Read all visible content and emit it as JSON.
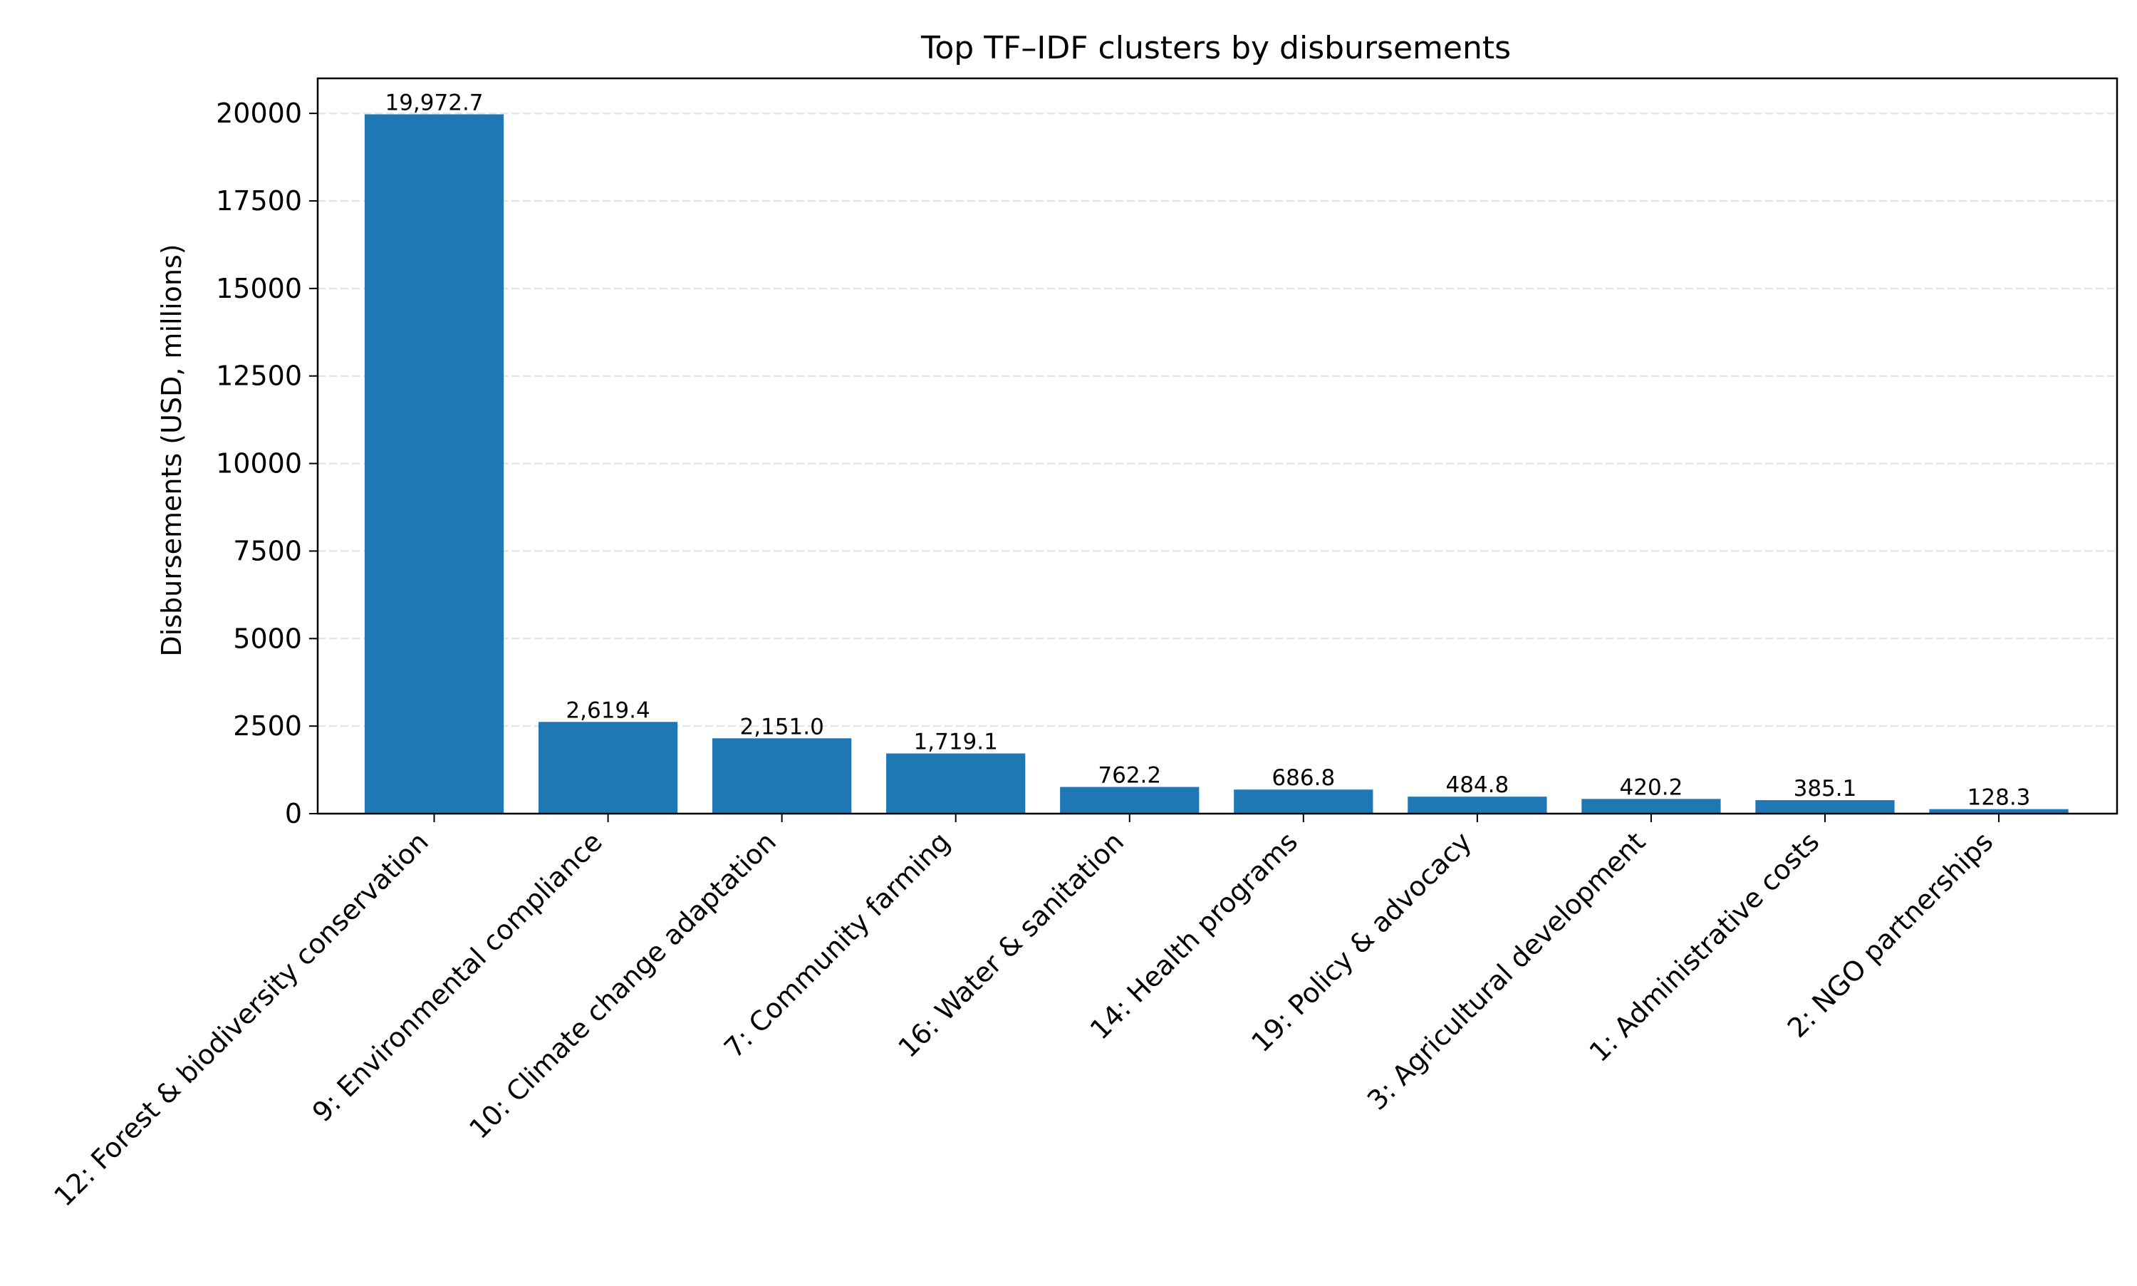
{
  "chart_data": {
    "type": "bar",
    "title": "Top TF–IDF clusters by disbursements",
    "xlabel": "",
    "ylabel": "Disbursements (USD, millions)",
    "ylim": [
      0,
      21000
    ],
    "yticks": [
      0,
      2500,
      5000,
      7500,
      10000,
      12500,
      15000,
      17500,
      20000
    ],
    "ytick_labels": [
      "0",
      "2500",
      "5000",
      "7500",
      "10000",
      "12500",
      "15000",
      "17500",
      "20000"
    ],
    "grid": "y-dashed",
    "legend": "none",
    "bar_color": "#1f77b4",
    "grid_color": "#e5e5e5",
    "categories": [
      "12: Forest & biodiversity conservation",
      "9: Environmental compliance",
      "10: Climate change adaptation",
      "7: Community farming",
      "16: Water & sanitation",
      "14: Health programs",
      "19: Policy & advocacy",
      "3: Agricultural development",
      "1: Administrative costs",
      "2: NGO partnerships"
    ],
    "values": [
      19972.7,
      2619.4,
      2151.0,
      1719.1,
      762.2,
      686.8,
      484.8,
      420.2,
      385.1,
      128.3
    ],
    "value_labels": [
      "19,972.7",
      "2,619.4",
      "2,151.0",
      "1,719.1",
      "762.2",
      "686.8",
      "484.8",
      "420.2",
      "385.1",
      "128.3"
    ]
  }
}
